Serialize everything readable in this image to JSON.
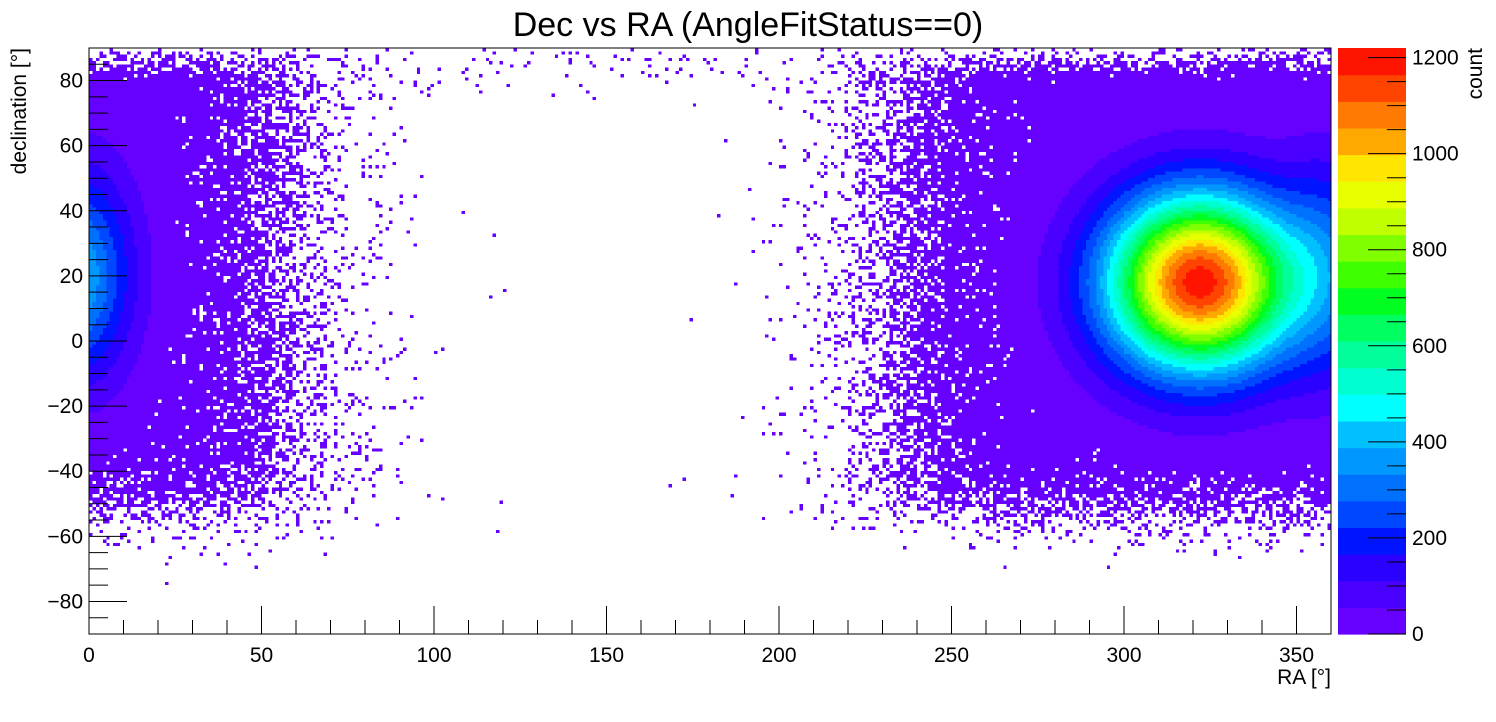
{
  "chart_data": {
    "type": "heatmap",
    "title": "Dec vs RA (AngleFitStatus==0)",
    "xlabel": "RA [°]",
    "ylabel": "declination [°]",
    "zlabel": "count",
    "xlim": [
      0,
      360
    ],
    "ylim": [
      -90,
      90
    ],
    "zlim": [
      0,
      1220
    ],
    "x_ticks": [
      0,
      50,
      100,
      150,
      200,
      250,
      300,
      350
    ],
    "y_ticks": [
      -80,
      -60,
      -40,
      -20,
      0,
      20,
      40,
      60,
      80
    ],
    "z_ticks": [
      0,
      200,
      400,
      600,
      800,
      1000,
      1200
    ],
    "palette": [
      "#6600ff",
      "#4a00ff",
      "#2a00ff",
      "#0014ff",
      "#0048ff",
      "#0070ff",
      "#0098ff",
      "#00c0ff",
      "#00ffff",
      "#00ffd0",
      "#00ff9a",
      "#00ff60",
      "#00ff20",
      "#40ff00",
      "#80ff00",
      "#c0ff00",
      "#e8ff00",
      "#ffe600",
      "#ffa800",
      "#ff7a00",
      "#ff4400",
      "#ff1400"
    ],
    "bins": {
      "nx": 360,
      "ny": 180
    },
    "grid": false,
    "features": [
      {
        "name": "primary peak",
        "ra_center": 322,
        "dec_center": 18,
        "peak_count": 1200,
        "sigma_ra": 19,
        "sigma_dec": 19
      },
      {
        "name": "secondary lobe",
        "ra_center": 0,
        "dec_center": 22,
        "peak_count": 220,
        "sigma_ra": 10,
        "sigma_dec": 24
      }
    ]
  }
}
